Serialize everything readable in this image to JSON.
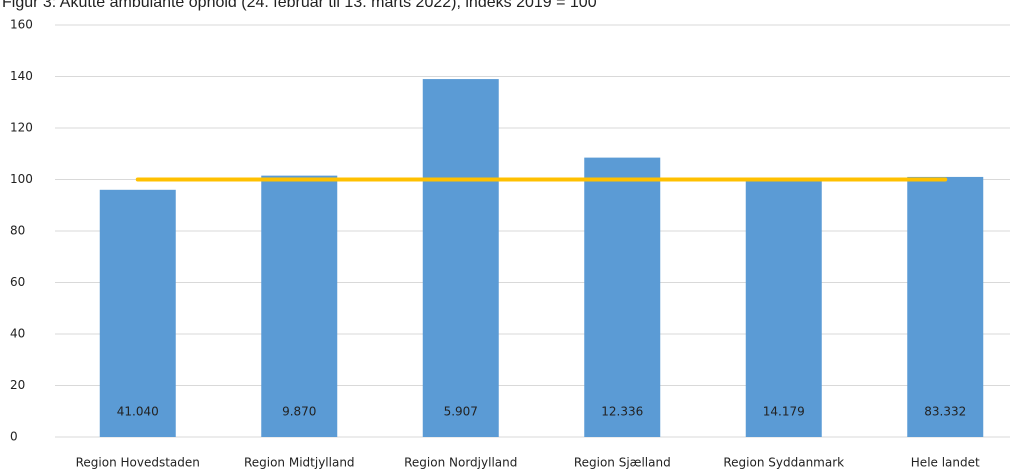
{
  "chart_data": {
    "type": "bar",
    "title": "Figur 3: Akutte ambulante ophold (24. februar til 13. marts 2022), indeks 2019 = 100",
    "categories": [
      "Region Hovedstaden",
      "Region Midtjylland",
      "Region Nordjylland",
      "Region Sjælland",
      "Region Syddanmark",
      "Hele landet"
    ],
    "values": [
      96,
      101.5,
      139,
      108.5,
      99.5,
      101
    ],
    "bar_labels": [
      "41.040",
      "9.870",
      "5.907",
      "12.336",
      "14.179",
      "83.332"
    ],
    "color": "#5b9bd5",
    "reference_line": {
      "value": 100,
      "color": "#ffc000"
    },
    "ylim": [
      0,
      160
    ],
    "yticks": [
      0,
      20,
      40,
      60,
      80,
      100,
      120,
      140,
      160
    ],
    "grid": true
  }
}
